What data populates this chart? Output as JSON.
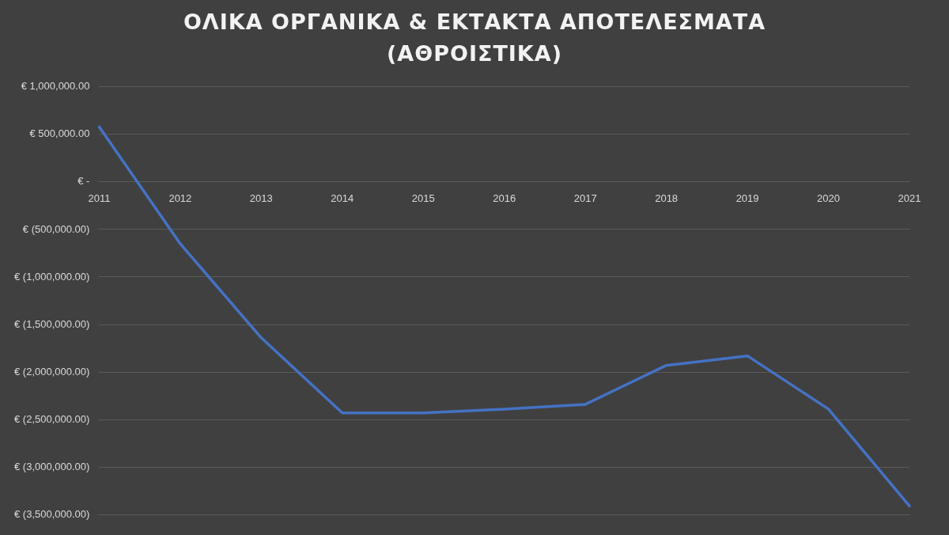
{
  "chart_data": {
    "type": "line",
    "title": "ΟΛΙΚΑ ΟΡΓΑΝΙΚΑ & ΕΚΤΑΚΤΑ ΑΠΟΤΕΛΕΣΜΑΤΑ (ΑΘΡΟΙΣΤΙΚΑ)",
    "categories": [
      "2011",
      "2012",
      "2013",
      "2014",
      "2015",
      "2016",
      "2017",
      "2018",
      "2019",
      "2020",
      "2021"
    ],
    "series": [
      {
        "color": "#4472c4",
        "values": [
          580000,
          -650000,
          -1640000,
          -2430000,
          -2430000,
          -2390000,
          -2340000,
          -1930000,
          -1830000,
          -2390000,
          -3410000
        ]
      }
    ],
    "ylim": [
      -3500000,
      1000000
    ],
    "yticks": [
      {
        "value": 1000000,
        "label": "€ 1,000,000.00"
      },
      {
        "value": 500000,
        "label": "€ 500,000.00"
      },
      {
        "value": 0,
        "label": "€ -"
      },
      {
        "value": -500000,
        "label": "€ (500,000.00)"
      },
      {
        "value": -1000000,
        "label": "€ (1,000,000.00)"
      },
      {
        "value": -1500000,
        "label": "€ (1,500,000.00)"
      },
      {
        "value": -2000000,
        "label": "€ (2,000,000.00)"
      },
      {
        "value": -2500000,
        "label": "€ (2,500,000.00)"
      },
      {
        "value": -3000000,
        "label": "€ (3,000,000.00)"
      },
      {
        "value": -3500000,
        "label": "€ (3,500,000.00)"
      }
    ],
    "grid": "y",
    "legend": false,
    "marker": "none",
    "line_style": "solid"
  }
}
